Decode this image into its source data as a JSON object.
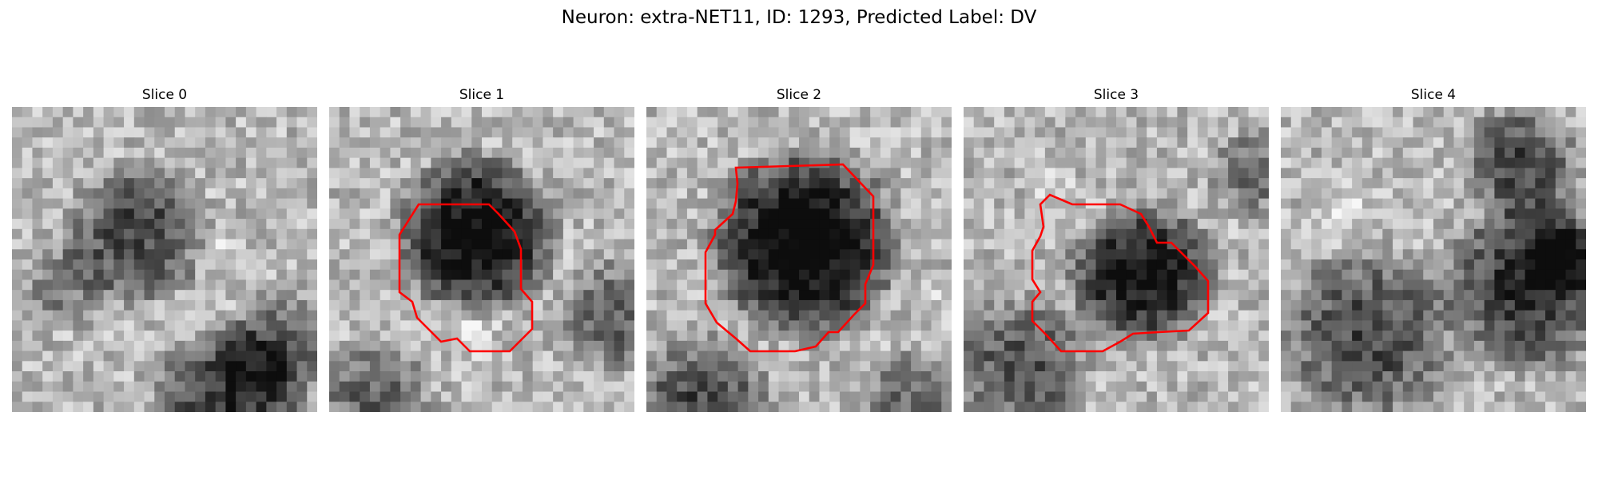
{
  "figure": {
    "title": "Neuron: extra-NET11, ID: 1293, Predicted Label: DV"
  },
  "contour_color": "#ff0000",
  "slices": [
    {
      "label": "Slice 0",
      "has_contour": false
    },
    {
      "label": "Slice 1",
      "has_contour": true
    },
    {
      "label": "Slice 2",
      "has_contour": true
    },
    {
      "label": "Slice 3",
      "has_contour": true
    },
    {
      "label": "Slice 4",
      "has_contour": false
    }
  ]
}
